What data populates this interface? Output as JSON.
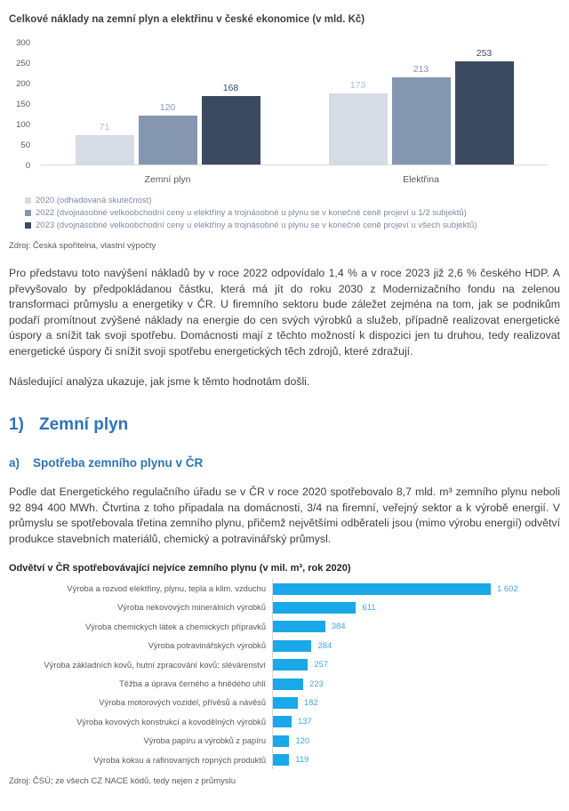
{
  "chart_data": [
    {
      "type": "bar",
      "title": "Celkové náklady na zemní plyn a elektřinu v české ekonomice (v mld. Kč)",
      "categories": [
        "Zemní plyn",
        "Elektřina"
      ],
      "series": [
        {
          "name": "2020 (odhadovaná skutečnost)",
          "values": [
            71,
            173
          ],
          "color": "#d6dce5",
          "label_color": "#aebdd1"
        },
        {
          "name": "2022 (dvojnásobné velkoobchodní ceny u elektřiny a trojnásobné u plynu se v konečné ceně projeví u 1/2 subjektů)",
          "values": [
            120,
            213
          ],
          "color": "#8496b0",
          "label_color": "#8496b0"
        },
        {
          "name": "2023 (dvojnásobné velkoobchodní ceny u elektřiny a trojnásobné u plynu se v konečné ceně projeví u všech subjektů)",
          "values": [
            168,
            253
          ],
          "color": "#3b4a60",
          "label_color": "#3b4a60"
        }
      ],
      "ylim": [
        0,
        300
      ],
      "yticks": [
        0,
        50,
        100,
        150,
        200,
        250,
        300
      ],
      "grid": false,
      "legend_position": "bottom",
      "source": "Zdroj: Česká spořitelna, vlastní výpočty"
    },
    {
      "type": "bar",
      "orientation": "horizontal",
      "title": "Odvětví v ČR spotřebovávající nejvíce zemního plynu (v mil. m³, rok 2020)",
      "categories": [
        "Výroba a rozvod elektřiny, plynu, tepla a klim. vzduchu",
        "Výroba nekovových minerálních výrobků",
        "Výroba chemických látek a chemických přípravků",
        "Výroba potravinářských výrobků",
        "Výroba základních kovů, hutní zpracování kovů; slévárenství",
        "Těžba a úprava černého a hnědého uhlí",
        "Výroba motorových vozidel, přívěsů a návěsů",
        "Výroba kovových konstrukcí a kovodělných výrobků",
        "Výroba papíru a výrobků z papíru",
        "Výroba koksu a rafinovaných ropných produktů"
      ],
      "values": [
        1602,
        611,
        384,
        284,
        257,
        223,
        182,
        137,
        120,
        119
      ],
      "value_labels": [
        "1 602",
        "611",
        "384",
        "284",
        "257",
        "223",
        "182",
        "137",
        "120",
        "119"
      ],
      "xlim": [
        0,
        1650
      ],
      "bar_color": "#19a8e8",
      "value_label_color": "#41a9dc",
      "source": "Zdroj: ČSÚ; ze všech CZ NACE kódů, tedy nejen z průmyslu"
    }
  ],
  "paragraphs": {
    "p1": "Pro představu toto navýšení nákladů by v roce 2022 odpovídalo 1,4 % a v roce 2023 již 2,6 % českého HDP. A převyšovalo by předpokládanou částku, která má jít do roku 2030 z Modernizačního fondu na zelenou transformaci průmyslu a energetiky v ČR. U firemního sektoru bude záležet zejména na tom, jak se podnikům podaří promítnout zvýšené náklady na energie do cen svých výrobků a služeb, případně realizovat energetické úspory a snížit tak svoji spotřebu. Domácnosti mají z těchto možností k dispozici jen tu druhou, tedy realizovat energetické úspory či snížit svoji spotřebu energetických těch zdrojů, které zdražují.",
    "p2": "Následující analýza ukazuje, jak jsme k těmto hodnotám došli.",
    "p3": "Podle dat Energetického regulačního úřadu se v ČR v roce 2020 spotřebovalo 8,7 mld. m³ zemního plynu neboli 92 894 400 MWh. Čtvrtina z toho připadala na domácnosti, 3/4 na firemní, veřejný sektor a k výrobě energií. V průmyslu se spotřebovala třetina zemního plynu, přičemž největšími odběrateli jsou (mimo výrobu energií) odvětví produkce stavebních materiálů, chemický a potravinářský průmysl."
  },
  "headings": {
    "h1_number": "1)",
    "h1_text": "Zemní plyn",
    "h2_number": "a)",
    "h2_text": "Spotřeba zemního plynu v ČR"
  }
}
